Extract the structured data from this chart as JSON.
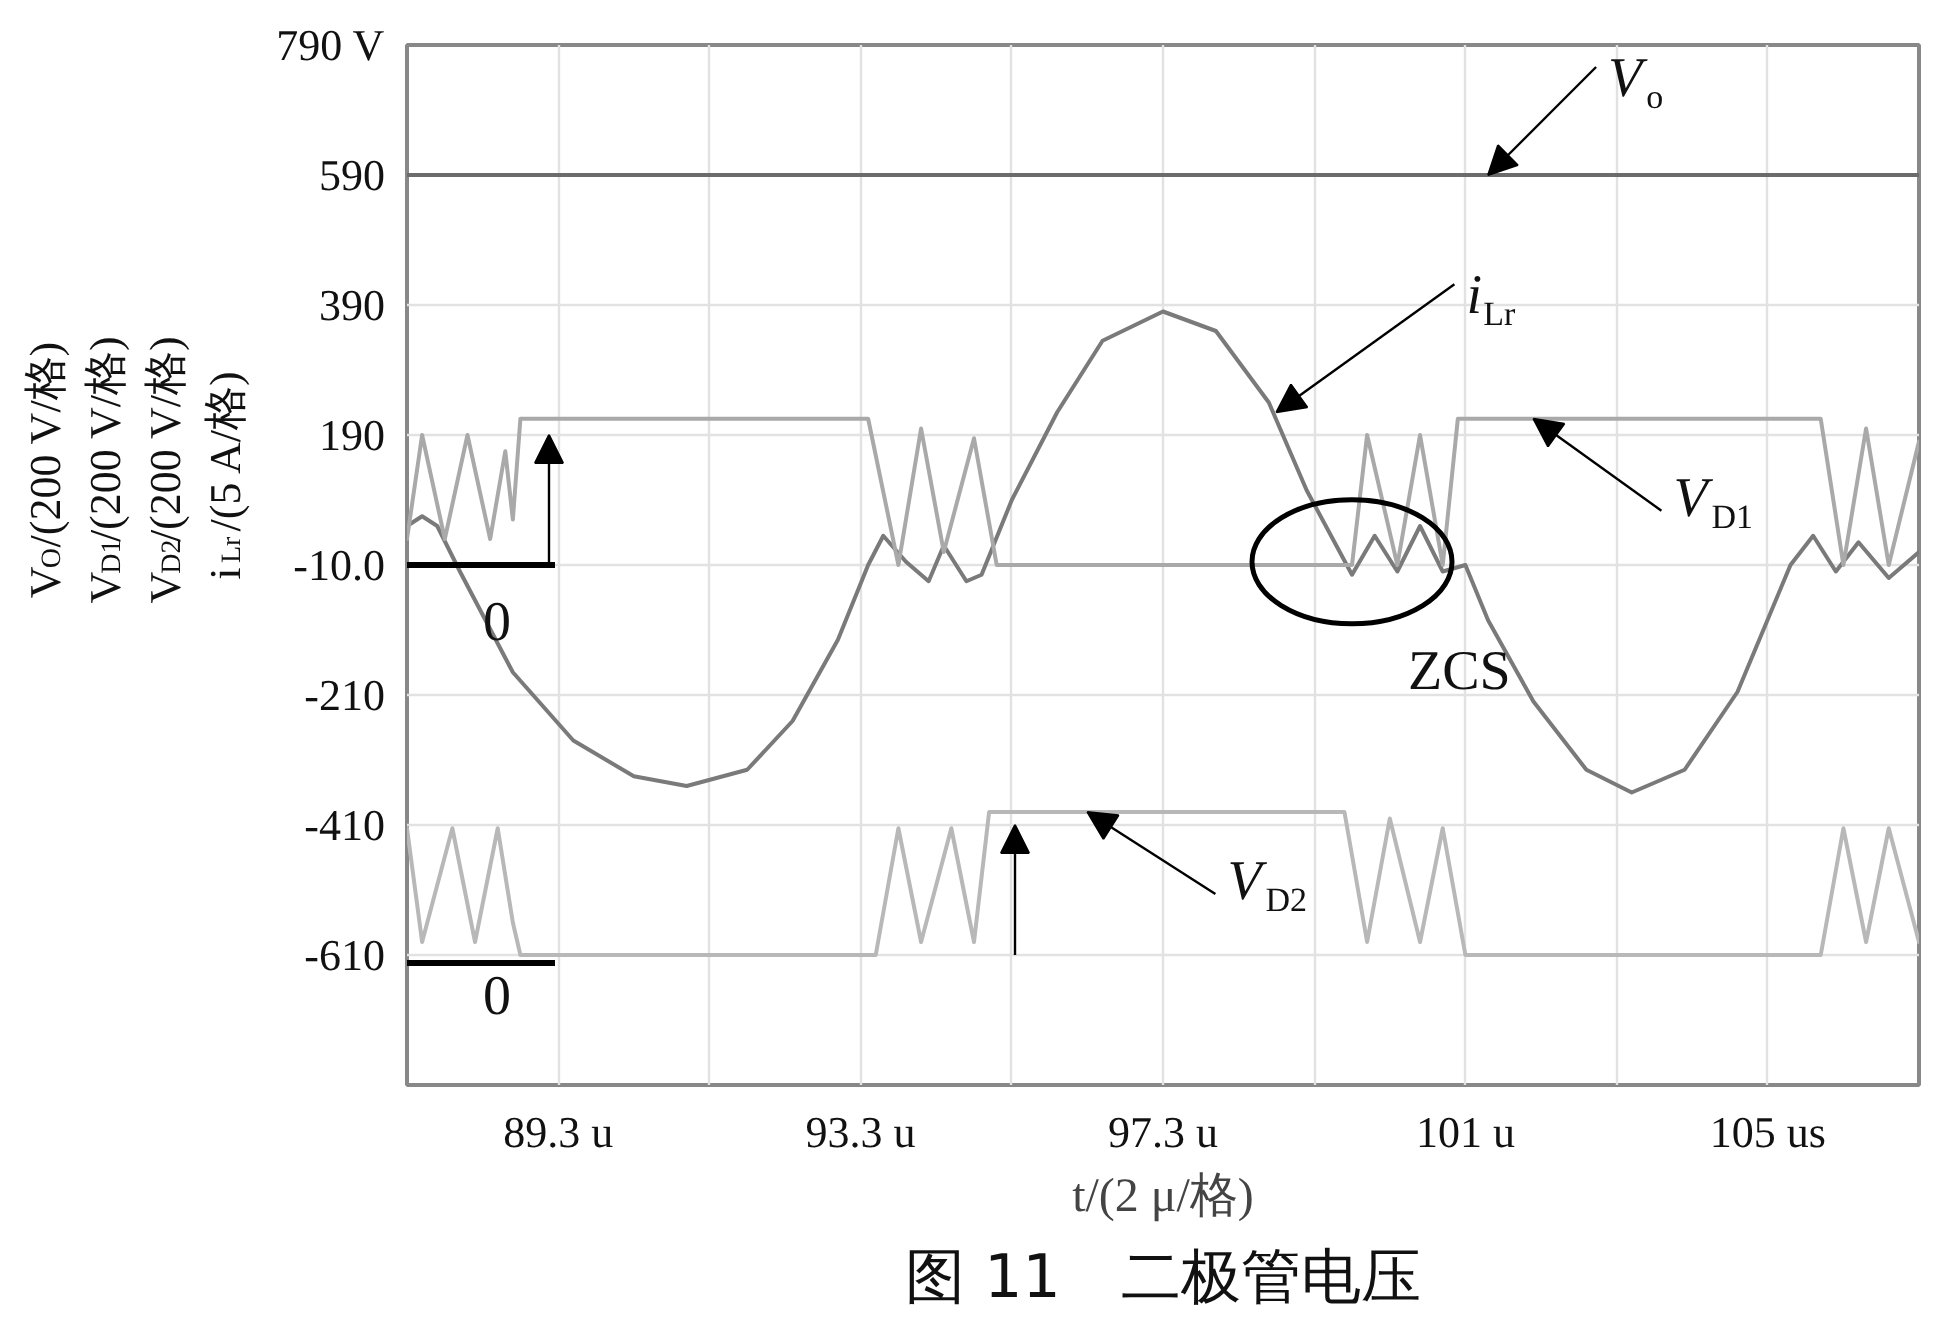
{
  "chart_data": {
    "type": "line",
    "title": "图 11　二极管电压",
    "xlabel": "t/(2 μ/格)",
    "ylabel": "V$_{O}$/(200 V/格)\nV$_{D1}$/(200 V/格)\nV$_{D2}$/(200 V/格)\ni$_{Lr}$/(5 A/格)",
    "xlim": [
      87.3,
      107.3
    ],
    "ylim": [
      -810,
      790
    ],
    "xticks": [
      {
        "value": 89.3,
        "label": "89.3 u"
      },
      {
        "value": 91.3,
        "label": null
      },
      {
        "value": 93.3,
        "label": "93.3 u"
      },
      {
        "value": 95.3,
        "label": null
      },
      {
        "value": 97.3,
        "label": "97.3 u"
      },
      {
        "value": 99.3,
        "label": null
      },
      {
        "value": 101.3,
        "label": "101 u"
      },
      {
        "value": 103.3,
        "label": null
      },
      {
        "value": 105.3,
        "label": "105 us"
      }
    ],
    "yticks": [
      {
        "value": 790,
        "label": "790 V"
      },
      590,
      390,
      190,
      {
        "value": -10,
        "label": "-10.0"
      },
      -210,
      -410,
      -610
    ],
    "grid": true,
    "series": [
      {
        "color": "#6b6b6b",
        "x": [
          87.3,
          89.3,
          91.3,
          93.3,
          95.3,
          97.3,
          99.3,
          101.3,
          103.3,
          105.3,
          107.3
        ],
        "values": [
          590,
          590,
          590,
          590,
          590,
          590,
          590,
          590,
          590,
          590,
          590
        ]
      },
      {
        "color": "#7a7a7a",
        "x": [
          87.3,
          87.5,
          87.7,
          88.0,
          88.7,
          89.5,
          90.3,
          91.0,
          91.8,
          92.4,
          93.0,
          93.4,
          93.6,
          93.9,
          94.2,
          94.4,
          94.7,
          94.9,
          95.3,
          95.9,
          96.5,
          97.3,
          98.0,
          98.7,
          99.2,
          99.8,
          100.1,
          100.4,
          100.7,
          101.0,
          101.3,
          101.6,
          102.2,
          102.9,
          103.5,
          104.2,
          104.9,
          105.6,
          105.9,
          106.2,
          106.5,
          106.9,
          107.3
        ],
        "values": [
          50,
          65,
          50,
          -20,
          -175,
          -280,
          -335,
          -350,
          -325,
          -250,
          -125,
          -10,
          35,
          -5,
          -35,
          20,
          -35,
          -25,
          90,
          225,
          335,
          380,
          350,
          240,
          105,
          -25,
          35,
          -20,
          50,
          -20,
          -10,
          -95,
          -220,
          -325,
          -360,
          -325,
          -205,
          -10,
          35,
          -20,
          25,
          -30,
          10
        ]
      },
      {
        "color": "#a9a9a9",
        "x": [
          87.3,
          87.5,
          87.8,
          88.1,
          88.4,
          88.6,
          88.7,
          88.8,
          93.4,
          93.8,
          94.1,
          94.4,
          94.8,
          95.1,
          99.8,
          100.0,
          100.4,
          100.7,
          101.0,
          101.2,
          106.0,
          106.3,
          106.6,
          106.9,
          107.3
        ],
        "values": [
          30,
          190,
          30,
          190,
          30,
          165,
          60,
          215,
          215,
          -10,
          200,
          10,
          185,
          -10,
          -10,
          190,
          -10,
          190,
          -10,
          215,
          215,
          -10,
          200,
          -10,
          180
        ]
      },
      {
        "color": "#b8b8b8",
        "x": [
          87.3,
          87.5,
          87.9,
          88.2,
          88.5,
          88.7,
          88.8,
          93.5,
          93.8,
          94.1,
          94.5,
          94.8,
          95.0,
          99.7,
          100.0,
          100.3,
          100.7,
          101.0,
          101.3,
          106.0,
          106.3,
          106.6,
          106.9,
          107.3
        ],
        "values": [
          -415,
          -590,
          -415,
          -590,
          -415,
          -560,
          -610,
          -610,
          -415,
          -590,
          -415,
          -590,
          -390,
          -390,
          -590,
          -400,
          -590,
          -415,
          -610,
          -610,
          -415,
          -590,
          -415,
          -590
        ]
      }
    ],
    "annotations": [
      {
        "text": "V$_{o}$",
        "x": 101.6,
        "y": 590
      },
      {
        "text": "i$_{Lr}$",
        "x": 98.8,
        "y": 225
      },
      {
        "text": "V$_{D1}$",
        "x": 102.2,
        "y": 215
      },
      {
        "text": "V$_{D2}$",
        "x": 96.3,
        "y": -390
      },
      {
        "text": "ZCS",
        "x": 99.8,
        "y": -5
      },
      "0",
      "0"
    ]
  }
}
